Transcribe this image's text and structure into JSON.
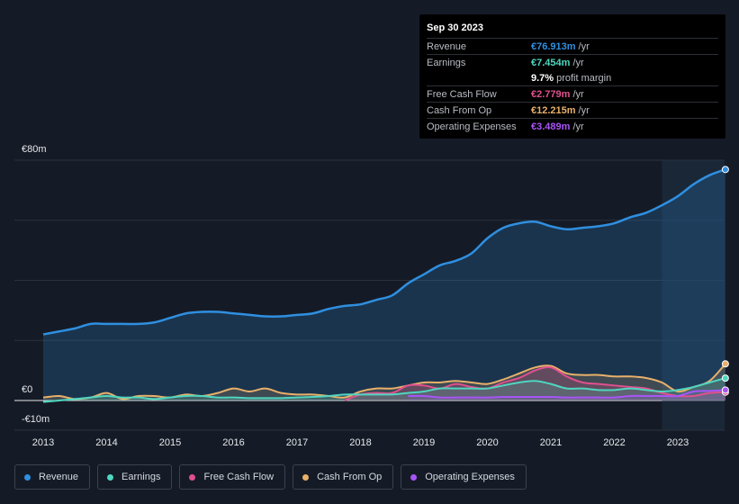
{
  "tooltip": {
    "date": "Sep 30 2023",
    "rows": [
      {
        "label": "Revenue",
        "value": "€76.913m",
        "unit": "/yr",
        "color": "#2f8fe0"
      },
      {
        "label": "Earnings",
        "value": "€7.454m",
        "unit": "/yr",
        "color": "#4fd6c0"
      },
      {
        "label": "",
        "value": "9.7%",
        "unit": "profit margin",
        "color": "#ffffff"
      },
      {
        "label": "Free Cash Flow",
        "value": "€2.779m",
        "unit": "/yr",
        "color": "#e0508e"
      },
      {
        "label": "Cash From Op",
        "value": "€12.215m",
        "unit": "/yr",
        "color": "#e8b06a"
      },
      {
        "label": "Operating Expenses",
        "value": "€3.489m",
        "unit": "/yr",
        "color": "#a855f7"
      }
    ]
  },
  "legend": [
    {
      "label": "Revenue",
      "color": "#2f8fe0"
    },
    {
      "label": "Earnings",
      "color": "#4fd6c0"
    },
    {
      "label": "Free Cash Flow",
      "color": "#e0508e"
    },
    {
      "label": "Cash From Op",
      "color": "#e8b06a"
    },
    {
      "label": "Operating Expenses",
      "color": "#a855f7"
    }
  ],
  "chart_data": {
    "type": "area",
    "y_tick_labels": [
      "€80m",
      "€0",
      "-€10m"
    ],
    "ylim": [
      -10,
      80
    ],
    "xlim": [
      2012.9,
      2023.75
    ],
    "highlight_start": 2022.75,
    "categories": [
      "2013",
      "2014",
      "2015",
      "2016",
      "2017",
      "2018",
      "2019",
      "2020",
      "2021",
      "2022",
      "2023"
    ],
    "series": [
      {
        "name": "Revenue",
        "color": "#2f8fe0",
        "x": [
          2013.0,
          2013.25,
          2013.5,
          2013.75,
          2014.0,
          2014.25,
          2014.5,
          2014.75,
          2015.0,
          2015.25,
          2015.5,
          2015.75,
          2016.0,
          2016.25,
          2016.5,
          2016.75,
          2017.0,
          2017.25,
          2017.5,
          2017.75,
          2018.0,
          2018.25,
          2018.5,
          2018.75,
          2019.0,
          2019.25,
          2019.5,
          2019.75,
          2020.0,
          2020.25,
          2020.5,
          2020.75,
          2021.0,
          2021.25,
          2021.5,
          2021.75,
          2022.0,
          2022.25,
          2022.5,
          2022.75,
          2023.0,
          2023.25,
          2023.5,
          2023.75
        ],
        "values": [
          22,
          23,
          24,
          25.5,
          25.5,
          25.5,
          25.5,
          26,
          27.5,
          29,
          29.5,
          29.5,
          29,
          28.5,
          28,
          28,
          28.5,
          29,
          30.5,
          31.5,
          32,
          33.5,
          35,
          39,
          42,
          45,
          46.5,
          49,
          54,
          57.5,
          59,
          59.5,
          58,
          57,
          57.5,
          58,
          59,
          61,
          62.5,
          65,
          68,
          72,
          75,
          76.9
        ]
      },
      {
        "name": "Earnings",
        "color": "#4fd6c0",
        "x": [
          2013.0,
          2013.25,
          2013.5,
          2013.75,
          2014.0,
          2014.25,
          2014.5,
          2014.75,
          2015.0,
          2015.25,
          2015.5,
          2015.75,
          2016.0,
          2016.25,
          2016.5,
          2016.75,
          2017.0,
          2017.25,
          2017.5,
          2017.75,
          2018.0,
          2018.25,
          2018.5,
          2018.75,
          2019.0,
          2019.25,
          2019.5,
          2019.75,
          2020.0,
          2020.25,
          2020.5,
          2020.75,
          2021.0,
          2021.25,
          2021.5,
          2021.75,
          2022.0,
          2022.25,
          2022.5,
          2022.75,
          2023.0,
          2023.25,
          2023.5,
          2023.75
        ],
        "values": [
          -0.5,
          0,
          0.5,
          1,
          1.5,
          1,
          1,
          0.5,
          1,
          1.5,
          1.5,
          1,
          1,
          0.8,
          0.8,
          0.8,
          1,
          1.2,
          1.5,
          2,
          2,
          2,
          2,
          2.5,
          3,
          4,
          4,
          4,
          4,
          5,
          6,
          6.5,
          5.5,
          4,
          4,
          3.5,
          3.5,
          4,
          3.5,
          3,
          3.5,
          4.5,
          6,
          7.45
        ]
      },
      {
        "name": "Free Cash Flow",
        "color": "#e0508e",
        "x": [
          2017.75,
          2018.0,
          2018.25,
          2018.5,
          2018.75,
          2019.0,
          2019.25,
          2019.5,
          2019.75,
          2020.0,
          2020.25,
          2020.5,
          2020.75,
          2021.0,
          2021.25,
          2021.5,
          2021.75,
          2022.0,
          2022.25,
          2022.5,
          2022.75,
          2023.0,
          2023.25,
          2023.5,
          2023.75
        ],
        "values": [
          0,
          2,
          2.5,
          2.5,
          5,
          5,
          4,
          5.5,
          4.5,
          4,
          6,
          7.5,
          10,
          11,
          8,
          6,
          5.5,
          5,
          4.5,
          4,
          2.5,
          1.5,
          1.5,
          2.5,
          2.78
        ]
      },
      {
        "name": "Cash From Op",
        "color": "#e8b06a",
        "x": [
          2013.0,
          2013.25,
          2013.5,
          2013.75,
          2014.0,
          2014.25,
          2014.5,
          2014.75,
          2015.0,
          2015.25,
          2015.5,
          2015.75,
          2016.0,
          2016.25,
          2016.5,
          2016.75,
          2017.0,
          2017.25,
          2017.5,
          2017.75,
          2018.0,
          2018.25,
          2018.5,
          2018.75,
          2019.0,
          2019.25,
          2019.5,
          2019.75,
          2020.0,
          2020.25,
          2020.5,
          2020.75,
          2021.0,
          2021.25,
          2021.5,
          2021.75,
          2022.0,
          2022.25,
          2022.5,
          2022.75,
          2023.0,
          2023.25,
          2023.5,
          2023.75
        ],
        "values": [
          1,
          1.5,
          0.5,
          1,
          2.5,
          0.5,
          1.5,
          1.5,
          1,
          2,
          1.5,
          2.5,
          4,
          3,
          4,
          2.5,
          2,
          2,
          1.5,
          1,
          3,
          4,
          4,
          5,
          6,
          6,
          6.5,
          6,
          5.5,
          7,
          9,
          11,
          11.5,
          9,
          8.5,
          8.5,
          8,
          8,
          7.5,
          6,
          3,
          4.5,
          6.5,
          12.2
        ]
      },
      {
        "name": "Operating Expenses",
        "color": "#a855f7",
        "x": [
          2018.75,
          2019.0,
          2019.25,
          2019.5,
          2019.75,
          2020.0,
          2020.25,
          2020.5,
          2020.75,
          2021.0,
          2021.25,
          2021.5,
          2021.75,
          2022.0,
          2022.25,
          2022.5,
          2022.75,
          2023.0,
          2023.25,
          2023.5,
          2023.75
        ],
        "values": [
          1.5,
          1.5,
          1,
          1,
          1,
          1,
          1.2,
          1.2,
          1.2,
          1.2,
          1,
          1,
          1,
          1,
          1.5,
          1.5,
          1.5,
          1.5,
          3,
          3.2,
          3.49
        ]
      }
    ]
  }
}
